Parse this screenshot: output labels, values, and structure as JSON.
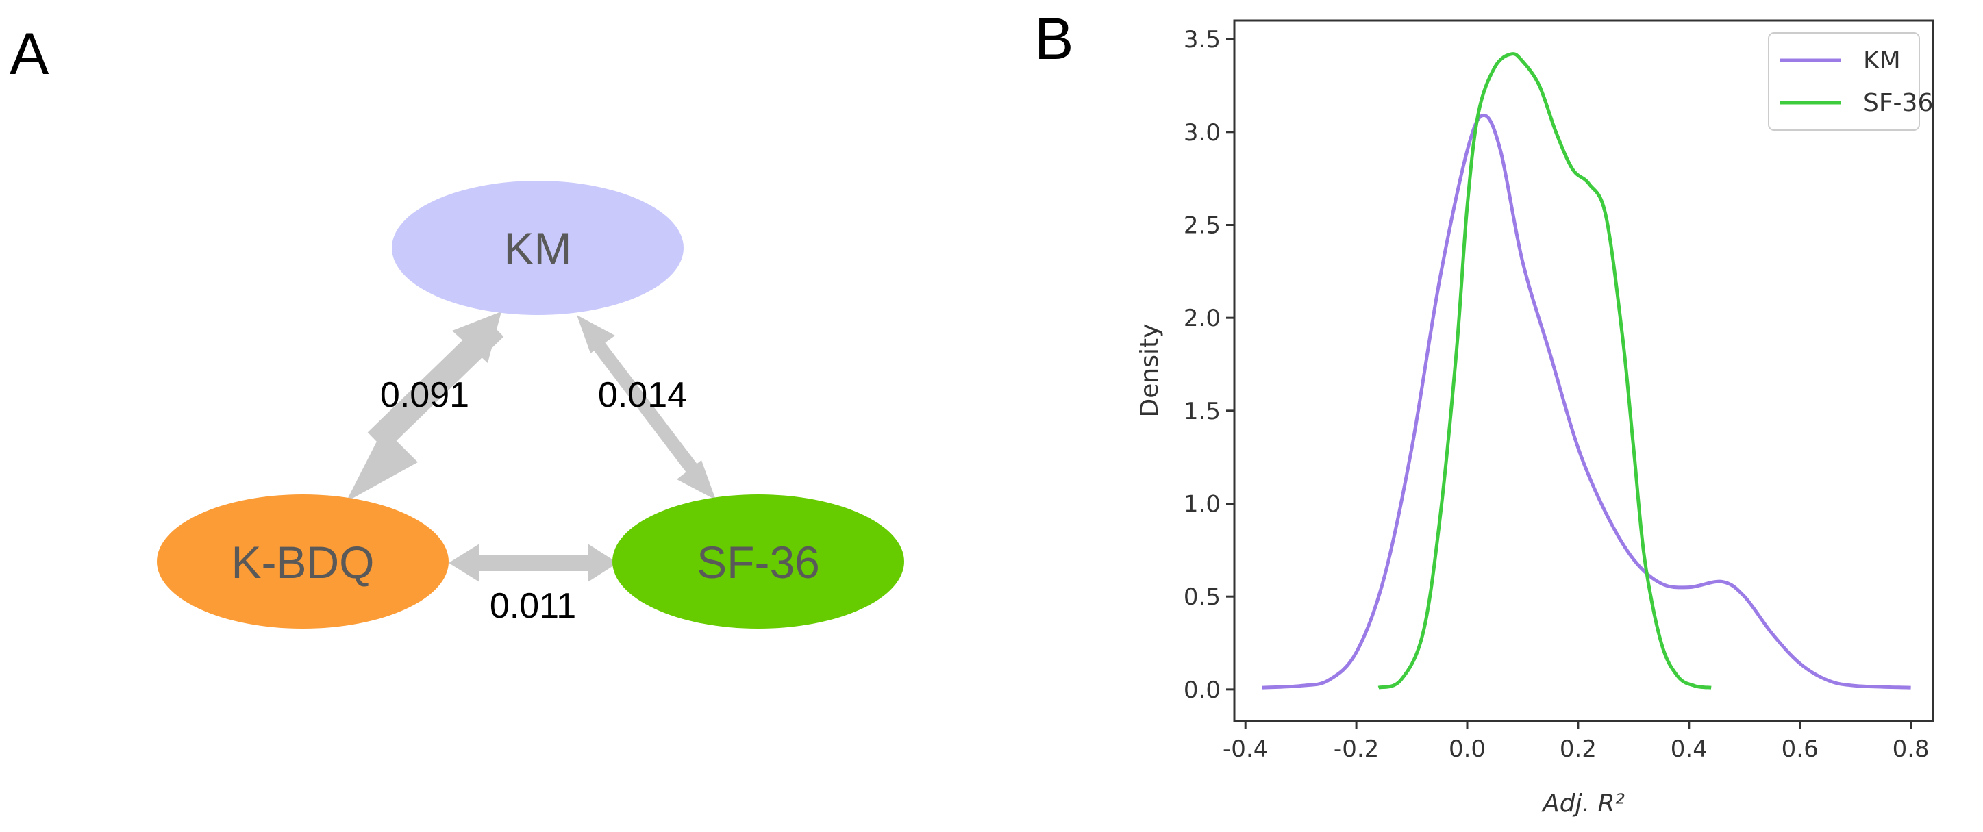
{
  "panel_a": {
    "letter": "A",
    "nodes": [
      {
        "id": "km",
        "label": "KM",
        "color": "#c9c9fb"
      },
      {
        "id": "kbdq",
        "label": "K-BDQ",
        "color": "#fb9c36"
      },
      {
        "id": "sf36",
        "label": "SF-36",
        "color": "#66cc00"
      }
    ],
    "edges": [
      {
        "from": "km",
        "to": "kbdq",
        "label": "0.091",
        "weight": 0.091
      },
      {
        "from": "km",
        "to": "sf36",
        "label": "0.014",
        "weight": 0.014
      },
      {
        "from": "kbdq",
        "to": "sf36",
        "label": "0.011",
        "weight": 0.011
      }
    ],
    "edge_color": "#c9c9c9"
  },
  "panel_b": {
    "letter": "B"
  },
  "chart_data": {
    "type": "line",
    "title": "",
    "xlabel": "Adj. R²",
    "ylabel": "Density",
    "xlim": [
      -0.42,
      0.84
    ],
    "ylim": [
      -0.17,
      3.6
    ],
    "xticks": [
      -0.4,
      -0.2,
      0.0,
      0.2,
      0.4,
      0.6,
      0.8
    ],
    "xtick_labels": [
      "-0.4",
      "-0.2",
      "0.0",
      "0.2",
      "0.4",
      "0.6",
      "0.8"
    ],
    "yticks": [
      0.0,
      0.5,
      1.0,
      1.5,
      2.0,
      2.5,
      3.0,
      3.5
    ],
    "ytick_labels": [
      "0.0",
      "0.5",
      "1.0",
      "1.5",
      "2.0",
      "2.5",
      "3.0",
      "3.5"
    ],
    "legend_position": "upper right",
    "series": [
      {
        "name": "KM",
        "color": "#9b7be6",
        "x": [
          -0.37,
          -0.3,
          -0.25,
          -0.2,
          -0.15,
          -0.1,
          -0.05,
          0.0,
          0.03,
          0.06,
          0.1,
          0.15,
          0.2,
          0.25,
          0.3,
          0.35,
          0.4,
          0.46,
          0.5,
          0.55,
          0.6,
          0.65,
          0.7,
          0.8
        ],
        "y": [
          0.01,
          0.02,
          0.05,
          0.2,
          0.6,
          1.3,
          2.2,
          2.9,
          3.09,
          2.9,
          2.3,
          1.8,
          1.3,
          0.95,
          0.7,
          0.57,
          0.55,
          0.58,
          0.5,
          0.3,
          0.14,
          0.05,
          0.02,
          0.01
        ]
      },
      {
        "name": "SF-36",
        "color": "#3ecb3e",
        "x": [
          -0.16,
          -0.12,
          -0.08,
          -0.05,
          -0.02,
          0.0,
          0.02,
          0.05,
          0.08,
          0.1,
          0.13,
          0.16,
          0.19,
          0.22,
          0.25,
          0.28,
          0.3,
          0.32,
          0.35,
          0.38,
          0.41,
          0.44
        ],
        "y": [
          0.01,
          0.05,
          0.3,
          0.9,
          1.8,
          2.6,
          3.1,
          3.35,
          3.42,
          3.38,
          3.25,
          3.0,
          2.8,
          2.72,
          2.55,
          1.9,
          1.3,
          0.7,
          0.25,
          0.07,
          0.02,
          0.01
        ]
      }
    ]
  }
}
